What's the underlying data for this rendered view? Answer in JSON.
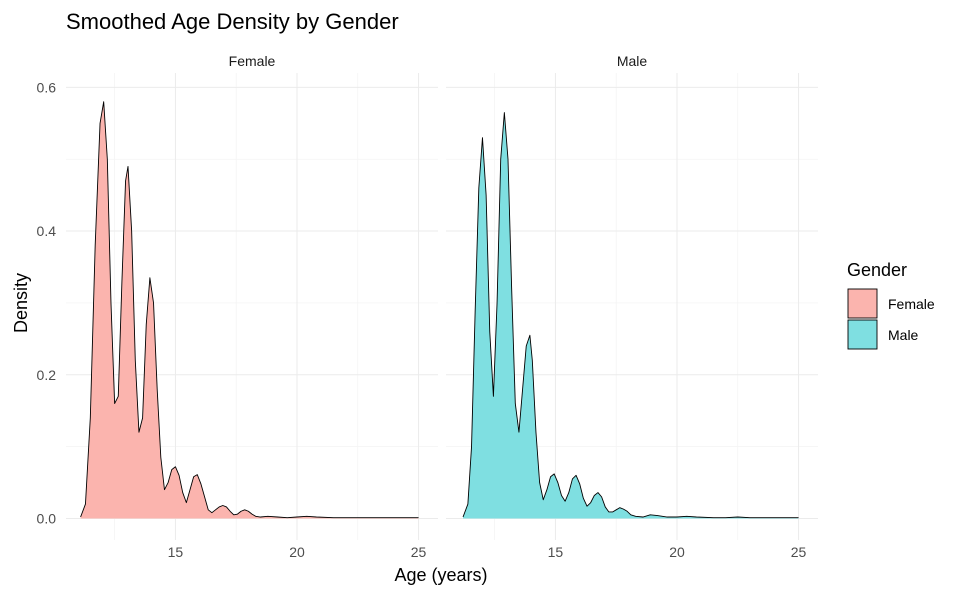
{
  "chart_data": {
    "type": "area",
    "title": "Smoothed Age Density by Gender",
    "xlabel": "Age (years)",
    "ylabel": "Density",
    "xlim": [
      10.5,
      25.8
    ],
    "ylim": [
      -0.03,
      0.62
    ],
    "x_ticks": [
      15,
      20,
      25
    ],
    "y_ticks": [
      0.0,
      0.2,
      0.4,
      0.6
    ],
    "y_tick_labels": [
      "0.0",
      "0.2",
      "0.4",
      "0.6"
    ],
    "grid": true,
    "legend_position": "right",
    "legend_title": "Gender",
    "facets": [
      "Female",
      "Male"
    ],
    "series": [
      {
        "name": "Female",
        "color": "#F8766D",
        "fill": "#FBB4AE",
        "x": [
          11.1,
          11.3,
          11.5,
          11.7,
          11.9,
          12.05,
          12.2,
          12.35,
          12.5,
          12.65,
          12.8,
          12.95,
          13.05,
          13.2,
          13.35,
          13.5,
          13.65,
          13.8,
          13.95,
          14.1,
          14.25,
          14.4,
          14.55,
          14.7,
          14.85,
          15.0,
          15.15,
          15.3,
          15.45,
          15.6,
          15.75,
          15.9,
          16.05,
          16.2,
          16.35,
          16.5,
          16.65,
          16.8,
          16.95,
          17.1,
          17.25,
          17.4,
          17.55,
          17.7,
          17.85,
          18.0,
          18.15,
          18.3,
          18.5,
          18.8,
          19.2,
          19.6,
          20.0,
          20.4,
          20.8,
          21.5,
          22.0,
          22.5,
          23.0,
          23.5,
          24.0,
          24.5,
          25.0
        ],
        "y": [
          0.002,
          0.02,
          0.14,
          0.38,
          0.55,
          0.58,
          0.5,
          0.3,
          0.16,
          0.17,
          0.33,
          0.47,
          0.49,
          0.4,
          0.22,
          0.12,
          0.14,
          0.27,
          0.335,
          0.3,
          0.18,
          0.085,
          0.04,
          0.05,
          0.068,
          0.072,
          0.06,
          0.036,
          0.022,
          0.04,
          0.058,
          0.061,
          0.048,
          0.03,
          0.012,
          0.008,
          0.012,
          0.016,
          0.018,
          0.016,
          0.01,
          0.005,
          0.006,
          0.01,
          0.012,
          0.01,
          0.006,
          0.003,
          0.002,
          0.003,
          0.002,
          0.001,
          0.002,
          0.003,
          0.002,
          0.001,
          0.001,
          0.001,
          0.001,
          0.001,
          0.001,
          0.001,
          0.001
        ]
      },
      {
        "name": "Male",
        "color": "#00BFC4",
        "fill": "#7FDFE1",
        "x": [
          11.2,
          11.4,
          11.55,
          11.7,
          11.85,
          12.0,
          12.15,
          12.3,
          12.45,
          12.6,
          12.75,
          12.9,
          13.05,
          13.2,
          13.35,
          13.5,
          13.65,
          13.8,
          13.95,
          14.05,
          14.2,
          14.35,
          14.5,
          14.65,
          14.8,
          14.95,
          15.1,
          15.25,
          15.4,
          15.55,
          15.7,
          15.85,
          16.0,
          16.15,
          16.3,
          16.45,
          16.6,
          16.75,
          16.9,
          17.05,
          17.2,
          17.35,
          17.5,
          17.65,
          17.8,
          17.95,
          18.1,
          18.3,
          18.6,
          18.9,
          19.2,
          19.6,
          20.0,
          20.4,
          20.8,
          21.5,
          22.0,
          22.5,
          23.0,
          23.5,
          24.0,
          24.5,
          25.0
        ],
        "y": [
          0.002,
          0.02,
          0.1,
          0.29,
          0.46,
          0.53,
          0.45,
          0.26,
          0.17,
          0.3,
          0.5,
          0.565,
          0.5,
          0.32,
          0.16,
          0.12,
          0.18,
          0.24,
          0.255,
          0.22,
          0.12,
          0.05,
          0.026,
          0.04,
          0.058,
          0.062,
          0.05,
          0.032,
          0.024,
          0.036,
          0.055,
          0.06,
          0.048,
          0.028,
          0.017,
          0.022,
          0.032,
          0.036,
          0.03,
          0.016,
          0.009,
          0.009,
          0.012,
          0.015,
          0.013,
          0.01,
          0.005,
          0.003,
          0.002,
          0.005,
          0.004,
          0.002,
          0.002,
          0.003,
          0.002,
          0.001,
          0.001,
          0.002,
          0.001,
          0.001,
          0.001,
          0.001,
          0.001
        ]
      }
    ]
  }
}
